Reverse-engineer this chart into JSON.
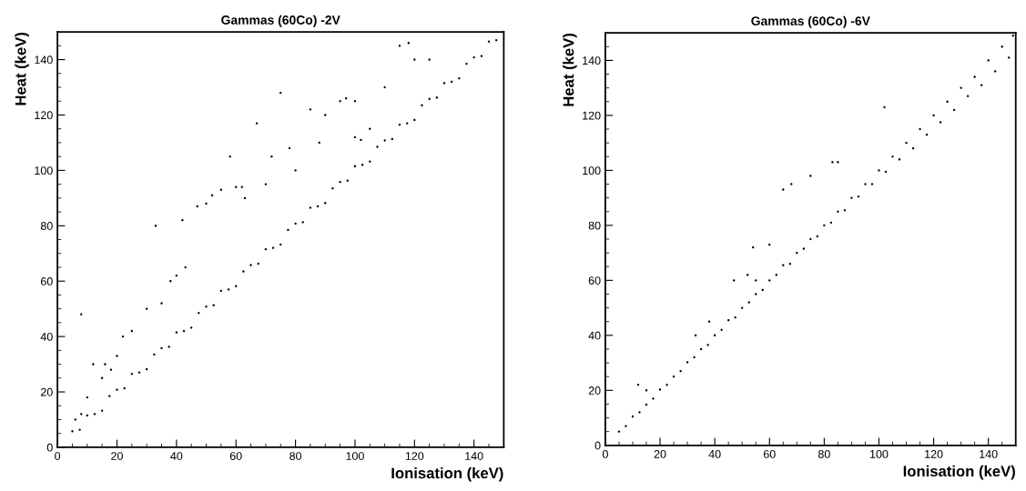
{
  "chart_data": [
    {
      "type": "scatter",
      "title": "Gammas (60Co) -2V",
      "xlabel": "Ionisation (keV)",
      "ylabel": "Heat (keV)",
      "xlim": [
        0,
        150
      ],
      "ylim": [
        0,
        150
      ],
      "marker": "circle",
      "grid": false,
      "xticks": [
        0,
        {
          "value": 5,
          "label": null
        },
        {
          "value": 10,
          "label": null
        },
        {
          "value": 15,
          "label": null
        },
        20,
        {
          "value": 25,
          "label": null
        },
        {
          "value": 30,
          "label": null
        },
        {
          "value": 35,
          "label": null
        },
        40,
        {
          "value": 45,
          "label": null
        },
        {
          "value": 50,
          "label": null
        },
        {
          "value": 55,
          "label": null
        },
        60,
        {
          "value": 65,
          "label": null
        },
        {
          "value": 70,
          "label": null
        },
        {
          "value": 75,
          "label": null
        },
        80,
        {
          "value": 85,
          "label": null
        },
        {
          "value": 90,
          "label": null
        },
        {
          "value": 95,
          "label": null
        },
        100,
        {
          "value": 105,
          "label": null
        },
        {
          "value": 110,
          "label": null
        },
        {
          "value": 115,
          "label": null
        },
        120,
        {
          "value": 125,
          "label": null
        },
        {
          "value": 130,
          "label": null
        },
        {
          "value": 135,
          "label": null
        },
        140,
        {
          "value": 145,
          "label": null
        }
      ],
      "yticks": [
        0,
        {
          "value": 5,
          "label": null
        },
        {
          "value": 10,
          "label": null
        },
        {
          "value": 15,
          "label": null
        },
        20,
        {
          "value": 25,
          "label": null
        },
        {
          "value": 30,
          "label": null
        },
        {
          "value": 35,
          "label": null
        },
        40,
        {
          "value": 45,
          "label": null
        },
        {
          "value": 50,
          "label": null
        },
        {
          "value": 55,
          "label": null
        },
        60,
        {
          "value": 65,
          "label": null
        },
        {
          "value": 70,
          "label": null
        },
        {
          "value": 75,
          "label": null
        },
        80,
        {
          "value": 85,
          "label": null
        },
        {
          "value": 90,
          "label": null
        },
        {
          "value": 95,
          "label": null
        },
        100,
        {
          "value": 105,
          "label": null
        },
        {
          "value": 110,
          "label": null
        },
        {
          "value": 115,
          "label": null
        },
        120,
        {
          "value": 125,
          "label": null
        },
        {
          "value": 130,
          "label": null
        },
        {
          "value": 135,
          "label": null
        },
        140,
        {
          "value": 145,
          "label": null
        }
      ],
      "series": [
        {
          "color": "#000000",
          "x": [
            5,
            7.5,
            10,
            12.5,
            15,
            17.5,
            20,
            22.5,
            25,
            27.5,
            30,
            32.5,
            35,
            37.5,
            40,
            42.5,
            45,
            47.5,
            50,
            52.5,
            55,
            57.5,
            60,
            62.5,
            65,
            67.5,
            70,
            72.5,
            75,
            77.5,
            80,
            82.5,
            85,
            87.5,
            90,
            92.5,
            95,
            97.5,
            100,
            102.5,
            105,
            107.5,
            110,
            112.5,
            115,
            117.5,
            120,
            122.5,
            125,
            127.5,
            130,
            132.5,
            135,
            137.5,
            140,
            142.5,
            145,
            147.5,
            8,
            33,
            42,
            75,
            67,
            58,
            55,
            52,
            50,
            47,
            60,
            62,
            63,
            40,
            43,
            38,
            30,
            35,
            25,
            22,
            20,
            16,
            12,
            18,
            15,
            10,
            6,
            8,
            80,
            85,
            90,
            95,
            100,
            105,
            110,
            115,
            120,
            125,
            100,
            88,
            70,
            72,
            78,
            97,
            102,
            118
          ],
          "values": [
            5.8,
            6.3,
            11.5,
            12,
            13.2,
            18.5,
            20.8,
            21.3,
            26.5,
            27,
            28.2,
            33.5,
            35.8,
            36.3,
            41.5,
            42,
            43.2,
            48.5,
            50.8,
            51.3,
            56.5,
            57,
            58.2,
            63.5,
            65.8,
            66.3,
            71.5,
            72,
            73.2,
            78.5,
            80.8,
            81.3,
            86.5,
            87,
            88.2,
            93.5,
            95.8,
            96.3,
            101.5,
            102,
            103.2,
            108.5,
            110.8,
            111.3,
            116.5,
            117,
            118.2,
            123.5,
            125.8,
            126.3,
            131.5,
            132,
            133.2,
            138.5,
            140.8,
            141.3,
            146.5,
            147,
            48,
            80,
            82,
            128,
            117,
            105,
            93,
            91,
            88,
            87,
            94,
            94,
            90,
            62,
            65,
            60,
            50,
            52,
            42,
            40,
            33,
            30,
            30,
            28,
            25,
            18,
            10,
            12,
            100,
            122,
            120,
            125,
            112,
            115,
            130,
            145,
            140,
            140,
            125,
            110,
            95,
            105,
            108,
            126,
            111,
            146
          ]
        }
      ]
    },
    {
      "type": "scatter",
      "title": "Gammas (60Co) -6V",
      "xlabel": "Ionisation (keV)",
      "ylabel": "Heat (keV)",
      "xlim": [
        0,
        150
      ],
      "ylim": [
        0,
        150
      ],
      "marker": "circle",
      "grid": false,
      "xticks": [
        0,
        {
          "value": 5,
          "label": null
        },
        {
          "value": 10,
          "label": null
        },
        {
          "value": 15,
          "label": null
        },
        20,
        {
          "value": 25,
          "label": null
        },
        {
          "value": 30,
          "label": null
        },
        {
          "value": 35,
          "label": null
        },
        40,
        {
          "value": 45,
          "label": null
        },
        {
          "value": 50,
          "label": null
        },
        {
          "value": 55,
          "label": null
        },
        60,
        {
          "value": 65,
          "label": null
        },
        {
          "value": 70,
          "label": null
        },
        {
          "value": 75,
          "label": null
        },
        80,
        {
          "value": 85,
          "label": null
        },
        {
          "value": 90,
          "label": null
        },
        {
          "value": 95,
          "label": null
        },
        100,
        {
          "value": 105,
          "label": null
        },
        {
          "value": 110,
          "label": null
        },
        {
          "value": 115,
          "label": null
        },
        120,
        {
          "value": 125,
          "label": null
        },
        {
          "value": 130,
          "label": null
        },
        {
          "value": 135,
          "label": null
        },
        140,
        {
          "value": 145,
          "label": null
        }
      ],
      "yticks": [
        0,
        {
          "value": 5,
          "label": null
        },
        {
          "value": 10,
          "label": null
        },
        {
          "value": 15,
          "label": null
        },
        20,
        {
          "value": 25,
          "label": null
        },
        {
          "value": 30,
          "label": null
        },
        {
          "value": 35,
          "label": null
        },
        40,
        {
          "value": 45,
          "label": null
        },
        {
          "value": 50,
          "label": null
        },
        {
          "value": 55,
          "label": null
        },
        60,
        {
          "value": 65,
          "label": null
        },
        {
          "value": 70,
          "label": null
        },
        {
          "value": 75,
          "label": null
        },
        80,
        {
          "value": 85,
          "label": null
        },
        {
          "value": 90,
          "label": null
        },
        {
          "value": 95,
          "label": null
        },
        100,
        {
          "value": 105,
          "label": null
        },
        {
          "value": 110,
          "label": null
        },
        {
          "value": 115,
          "label": null
        },
        120,
        {
          "value": 125,
          "label": null
        },
        {
          "value": 130,
          "label": null
        },
        {
          "value": 135,
          "label": null
        },
        140,
        {
          "value": 145,
          "label": null
        }
      ],
      "series": [
        {
          "color": "#000000",
          "x": [
            5,
            7.5,
            10,
            12.5,
            15,
            17.5,
            20,
            22.5,
            25,
            27.5,
            30,
            32.5,
            35,
            37.5,
            40,
            42.5,
            45,
            47.5,
            50,
            52.5,
            55,
            57.5,
            60,
            62.5,
            65,
            67.5,
            70,
            72.5,
            75,
            77.5,
            80,
            82.5,
            85,
            87.5,
            90,
            92.5,
            95,
            97.5,
            100,
            102.5,
            105,
            107.5,
            110,
            112.5,
            115,
            117.5,
            120,
            122.5,
            125,
            127.5,
            130,
            132.5,
            135,
            137.5,
            140,
            142.5,
            145,
            147.5,
            149,
            12,
            15,
            33,
            38,
            47,
            52,
            54,
            65,
            68,
            75,
            83,
            85,
            102,
            60,
            55
          ],
          "values": [
            5,
            7,
            10.5,
            12,
            14.8,
            17,
            20.3,
            22,
            25,
            27,
            30.2,
            32,
            35,
            36.5,
            40,
            42,
            45.5,
            46.5,
            50,
            52,
            55,
            56.5,
            60,
            62,
            65.5,
            66,
            70,
            71.5,
            75,
            76,
            80,
            81,
            85,
            85.5,
            90,
            90.5,
            95,
            95,
            100,
            99.5,
            105,
            104,
            110,
            108,
            115,
            113,
            120,
            117.5,
            125,
            122,
            130,
            127,
            134,
            131,
            140,
            136,
            145,
            141,
            149,
            22,
            20,
            40,
            45,
            60,
            62,
            72,
            93,
            95,
            98,
            103,
            103,
            123,
            73,
            60
          ]
        }
      ]
    }
  ]
}
